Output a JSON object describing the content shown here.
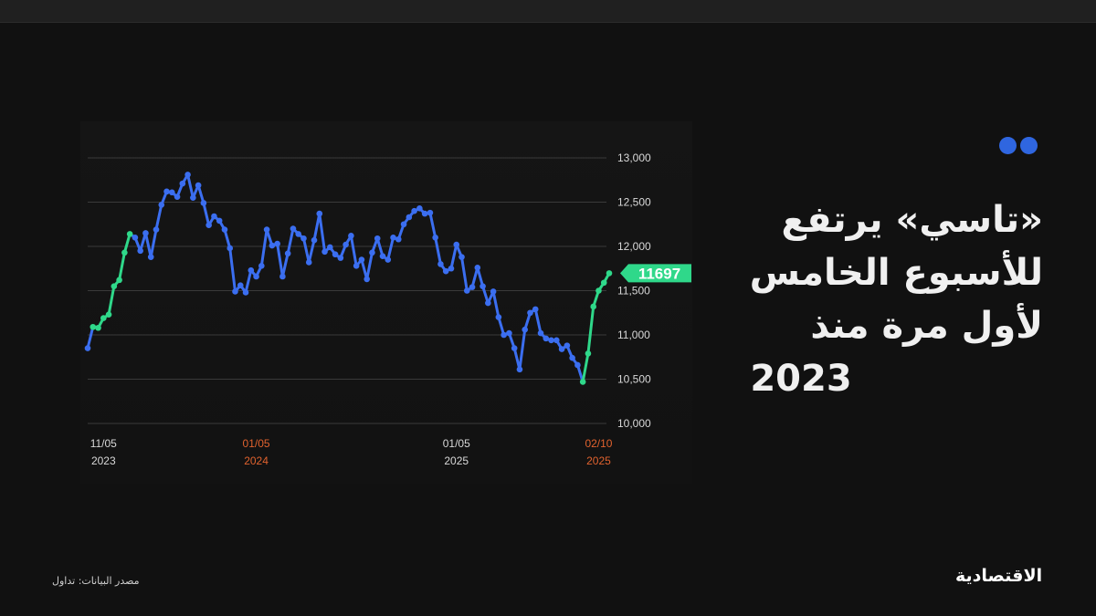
{
  "header": {
    "title_lines": [
      "«تاسي» يرتفع",
      "للأسبوع الخامس",
      "لأول مرة منذ",
      "2023"
    ],
    "accent_dots_color": "#2f66e0"
  },
  "footer": {
    "source": "مصدر البيانات: تداول",
    "logo": "الاقتصادية"
  },
  "chart_data": {
    "type": "line",
    "title": "",
    "xlabel": "",
    "ylabel": "",
    "ylim": [
      10000,
      13000
    ],
    "yticks": [
      10000,
      10500,
      11000,
      11500,
      12000,
      12500,
      13000
    ],
    "ytick_labels": [
      "10,000",
      "10,500",
      "11,000",
      "11,500",
      "12,000",
      "12,500",
      "13,000"
    ],
    "grid": true,
    "xticks": [
      {
        "index": 3,
        "line1": "11/05",
        "line2": "2023",
        "highlight": false
      },
      {
        "index": 32,
        "line1": "01/05",
        "line2": "2024",
        "highlight": true
      },
      {
        "index": 70,
        "line1": "01/05",
        "line2": "2025",
        "highlight": false
      },
      {
        "index": 97,
        "line1": "02/10",
        "line2": "2025",
        "highlight": true
      }
    ],
    "values": [
      10850,
      11090,
      11080,
      11190,
      11230,
      11550,
      11620,
      11930,
      12140,
      12100,
      11950,
      12150,
      11880,
      12190,
      12470,
      12620,
      12610,
      12560,
      12710,
      12810,
      12550,
      12690,
      12490,
      12240,
      12340,
      12290,
      12190,
      11980,
      11490,
      11560,
      11480,
      11730,
      11660,
      11780,
      12190,
      12010,
      12030,
      11660,
      11920,
      12200,
      12140,
      12090,
      11820,
      12070,
      12370,
      11940,
      11990,
      11910,
      11870,
      12020,
      12120,
      11780,
      11850,
      11630,
      11930,
      12090,
      11890,
      11850,
      12100,
      12080,
      12250,
      12330,
      12400,
      12430,
      12370,
      12380,
      12100,
      11800,
      11720,
      11750,
      12020,
      11880,
      11500,
      11540,
      11760,
      11550,
      11360,
      11490,
      11200,
      11000,
      11020,
      10850,
      10610,
      11060,
      11250,
      11290,
      11020,
      10960,
      10940,
      10940,
      10840,
      10880,
      10740,
      10660,
      10470,
      10790,
      11320,
      11500,
      11590,
      11697
    ],
    "rising_streaks": [
      [
        1,
        8
      ],
      [
        94,
        99
      ]
    ],
    "last_value_label": "11697",
    "colors": {
      "line": "#3b6ef0",
      "rising": "#2fd88a",
      "grid": "#3a3a3a",
      "axis_text": "#d8d8d8",
      "highlight_text": "#e0622e",
      "label_bg": "#2fd88a"
    }
  }
}
